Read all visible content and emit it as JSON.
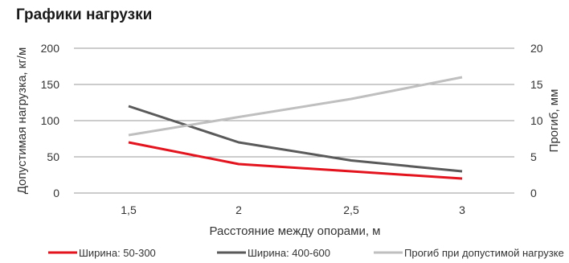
{
  "chart_data": {
    "type": "line",
    "title": "Графики нагрузки",
    "xlabel": "Расстояние между опорами, м",
    "ylabel": "Допустимая нагрузка, кг/м",
    "y2label": "Прогиб, мм",
    "categories": [
      "1,5",
      "2",
      "2,5",
      "3"
    ],
    "x": [
      1.5,
      2,
      2.5,
      3
    ],
    "ylim": [
      0,
      200
    ],
    "yticks": [
      "0",
      "50",
      "100",
      "150",
      "200"
    ],
    "y2lim": [
      0,
      20
    ],
    "y2ticks": [
      "0",
      "5",
      "10",
      "15",
      "20"
    ],
    "grid": true,
    "legend_position": "bottom",
    "series": [
      {
        "name": "Ширина: 50-300",
        "axis": "left",
        "color": "#e3141e",
        "values": [
          70,
          40,
          30,
          20
        ]
      },
      {
        "name": "Ширина: 400-600",
        "axis": "left",
        "color": "#5a5a5a",
        "values": [
          120,
          70,
          45,
          30
        ]
      },
      {
        "name": "Прогиб при допустимой нагрузке",
        "axis": "right",
        "color": "#bfbfbf",
        "values": [
          8,
          10.5,
          13,
          16
        ]
      }
    ]
  }
}
